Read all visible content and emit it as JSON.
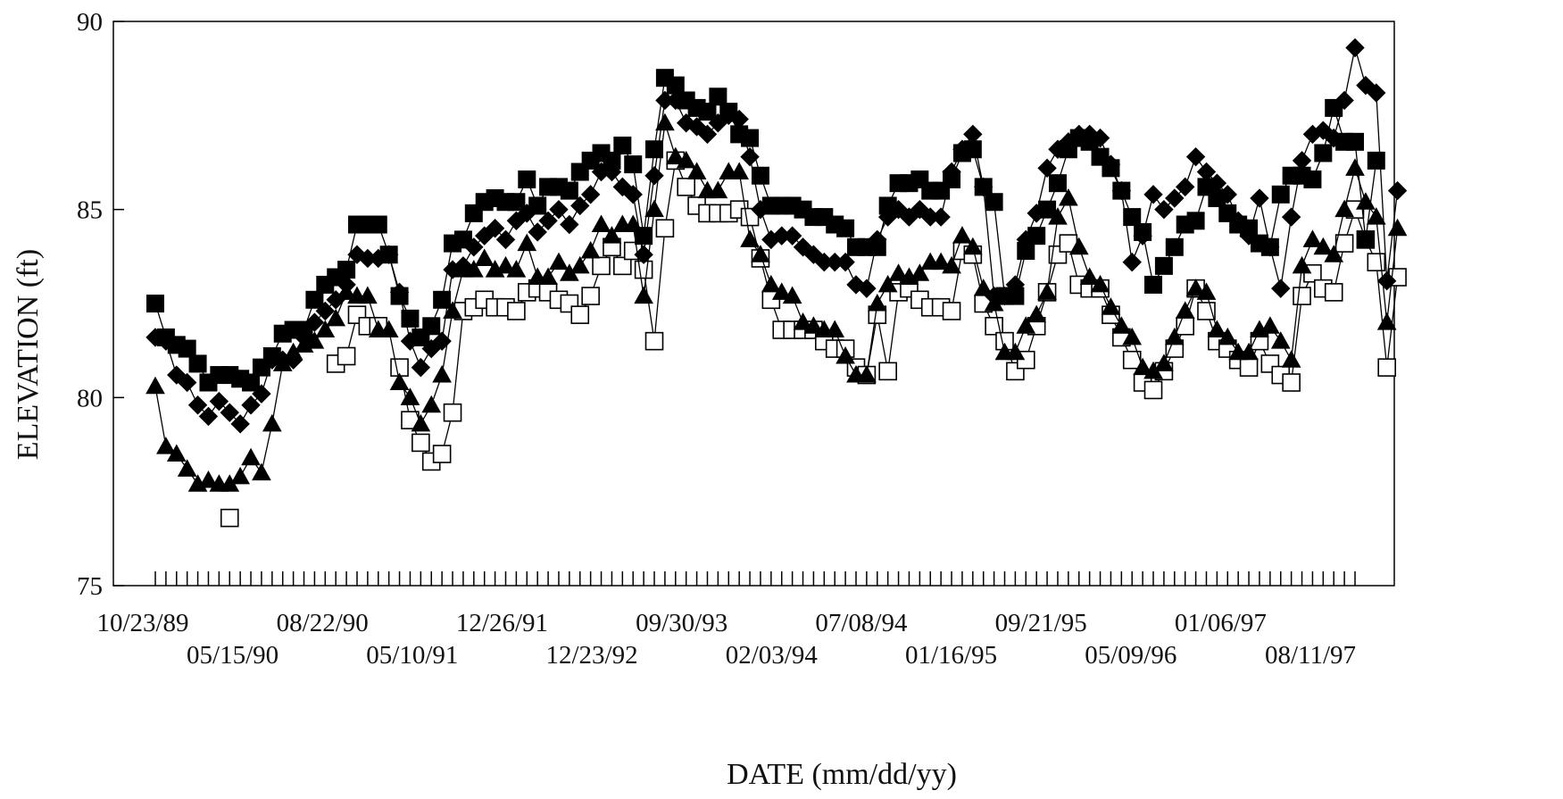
{
  "chart_data": {
    "type": "line",
    "title": "",
    "xlabel": "DATE (mm/dd/yy)",
    "ylabel": "ELEVATION (ft)",
    "ylim": [
      75,
      90
    ],
    "yticks": [
      "75",
      "80",
      "85",
      "90"
    ],
    "x_ticks_major": [
      "10/23/89",
      "05/15/90",
      "08/22/90",
      "05/10/91",
      "12/26/91",
      "12/23/92",
      "09/30/93",
      "02/03/94",
      "07/08/94",
      "01/16/95",
      "09/21/95",
      "05/09/96",
      "01/06/97",
      "08/11/97"
    ],
    "x_tick_count": 114,
    "grid": false,
    "legend": "none",
    "colors": {
      "filled": "#000000",
      "open_fill": "#ffffff",
      "line": "#000000"
    },
    "series": [
      {
        "marker": "filled-square",
        "values": [
          82.5,
          81.6,
          81.4,
          81.3,
          80.9,
          80.4,
          80.6,
          80.6,
          80.5,
          80.4,
          80.8,
          81.1,
          81.7,
          81.8,
          81.8,
          82.6,
          83.0,
          83.2,
          83.4,
          84.6,
          84.6,
          84.6,
          83.8,
          82.7,
          82.1,
          81.6,
          81.9,
          82.6,
          84.1,
          84.2,
          84.9,
          85.2,
          85.3,
          85.2,
          85.2,
          85.8,
          85.1,
          85.6,
          85.6,
          85.5,
          86.0,
          86.3,
          86.5,
          86.3,
          86.7,
          86.2,
          84.3,
          86.6,
          88.5,
          88.3,
          87.9,
          87.7,
          87.6,
          88.0,
          87.6,
          87.0,
          86.9,
          85.9,
          85.1,
          85.1,
          85.1,
          85.0,
          84.8,
          84.8,
          84.6,
          84.5,
          84.0,
          84.0,
          84.0,
          85.1,
          85.7,
          85.7,
          85.8,
          85.5,
          85.5,
          85.8,
          86.5,
          86.6,
          85.6,
          85.2,
          82.7,
          82.7,
          83.9,
          84.3,
          85.0,
          85.7,
          86.6,
          86.9,
          86.8,
          86.4,
          86.1,
          85.5,
          84.8,
          84.4,
          83.0,
          83.5,
          84.0,
          84.6,
          84.7,
          85.6,
          85.3,
          84.9,
          84.6,
          84.5,
          84.1,
          84.0,
          85.4,
          85.9,
          85.9,
          85.8,
          86.5,
          87.7,
          86.8,
          86.8,
          84.2,
          86.3
        ]
      },
      {
        "marker": "filled-diamond",
        "values": [
          81.6,
          81.5,
          80.6,
          80.4,
          79.8,
          79.5,
          79.9,
          79.6,
          79.3,
          79.8,
          80.1,
          81.0,
          81.0,
          81.0,
          81.6,
          82.0,
          82.3,
          82.6,
          83.0,
          83.8,
          83.7,
          83.7,
          83.8,
          82.8,
          81.5,
          80.8,
          81.3,
          81.5,
          83.4,
          83.5,
          84.0,
          84.3,
          84.5,
          84.2,
          84.7,
          84.9,
          84.4,
          84.7,
          85.0,
          84.6,
          85.1,
          85.4,
          86.0,
          86.0,
          85.6,
          85.4,
          83.8,
          85.9,
          87.9,
          87.9,
          87.3,
          87.2,
          87.0,
          87.3,
          87.5,
          87.4,
          86.4,
          85.0,
          84.2,
          84.3,
          84.3,
          84.0,
          83.8,
          83.6,
          83.6,
          83.6,
          83.0,
          82.9,
          84.2,
          84.8,
          85.0,
          84.8,
          85.0,
          84.8,
          84.8,
          86.0,
          86.6,
          87.0,
          85.6,
          82.7,
          82.7,
          83.0,
          84.2,
          84.9,
          86.1,
          86.6,
          86.8,
          87.0,
          87.0,
          86.9,
          86.2,
          85.5,
          83.6,
          84.3,
          85.4,
          85.0,
          85.3,
          85.6,
          86.4,
          86.0,
          85.7,
          85.4,
          84.7,
          84.3,
          85.3,
          84.0,
          82.9,
          84.8,
          86.3,
          87.0,
          87.1,
          86.9,
          87.9,
          89.3,
          88.3,
          88.1,
          83.1,
          85.5
        ]
      },
      {
        "marker": "filled-triangle",
        "values": [
          80.3,
          78.7,
          78.5,
          78.1,
          77.7,
          77.8,
          77.7,
          77.7,
          77.9,
          78.4,
          78.0,
          79.3,
          80.9,
          81.2,
          81.4,
          81.5,
          81.8,
          82.1,
          82.8,
          82.7,
          82.7,
          81.8,
          81.8,
          80.4,
          80.0,
          79.3,
          79.8,
          80.6,
          82.3,
          83.4,
          83.4,
          83.7,
          83.4,
          83.5,
          83.4,
          84.1,
          83.2,
          83.2,
          83.6,
          83.3,
          83.5,
          83.9,
          84.6,
          84.3,
          84.6,
          84.6,
          82.7,
          85.0,
          87.3,
          86.4,
          86.3,
          86.0,
          85.5,
          85.5,
          86.0,
          86.0,
          84.2,
          83.8,
          83.0,
          82.8,
          82.7,
          82.0,
          81.9,
          81.8,
          81.8,
          81.1,
          80.6,
          80.6,
          82.5,
          83.0,
          83.3,
          83.2,
          83.3,
          83.6,
          83.6,
          83.5,
          84.3,
          84.0,
          82.9,
          82.5,
          81.2,
          81.2,
          81.9,
          82.2,
          82.8,
          84.8,
          85.3,
          84.0,
          83.2,
          83.0,
          82.4,
          81.9,
          81.6,
          80.8,
          80.7,
          80.9,
          81.6,
          82.3,
          82.9,
          82.8,
          81.8,
          81.6,
          81.2,
          81.2,
          81.8,
          81.9,
          81.5,
          81.0,
          83.5,
          84.2,
          84.0,
          83.8,
          85.0,
          86.1,
          85.2,
          84.8,
          82.0,
          84.5
        ]
      },
      {
        "marker": "open-square",
        "values": [
          null,
          null,
          null,
          null,
          null,
          null,
          null,
          76.8,
          null,
          null,
          null,
          null,
          null,
          null,
          null,
          null,
          null,
          80.9,
          81.1,
          82.2,
          81.9,
          81.9,
          null,
          80.8,
          79.4,
          78.8,
          78.3,
          78.5,
          79.6,
          82.3,
          82.4,
          82.6,
          82.4,
          82.4,
          82.3,
          82.8,
          82.9,
          82.8,
          82.6,
          82.5,
          82.2,
          82.7,
          83.5,
          84.0,
          83.5,
          83.9,
          83.4,
          81.5,
          84.5,
          86.3,
          85.6,
          85.1,
          84.9,
          84.9,
          84.9,
          85.0,
          84.8,
          83.7,
          82.6,
          81.8,
          81.8,
          81.8,
          81.8,
          81.5,
          81.3,
          81.3,
          80.8,
          80.6,
          82.2,
          80.7,
          82.8,
          82.9,
          82.6,
          82.4,
          82.4,
          82.3,
          83.9,
          83.8,
          82.5,
          81.9,
          81.5,
          80.7,
          81.0,
          81.9,
          82.8,
          83.8,
          84.1,
          83.0,
          82.9,
          82.9,
          82.2,
          81.6,
          81.0,
          80.4,
          80.2,
          80.7,
          81.3,
          81.9,
          82.9,
          82.3,
          81.5,
          81.3,
          81.0,
          80.8,
          81.5,
          80.9,
          80.6,
          80.4,
          82.7,
          83.3,
          82.9,
          82.8,
          84.1,
          85.0,
          84.2,
          83.6,
          80.8,
          83.2
        ]
      }
    ]
  }
}
